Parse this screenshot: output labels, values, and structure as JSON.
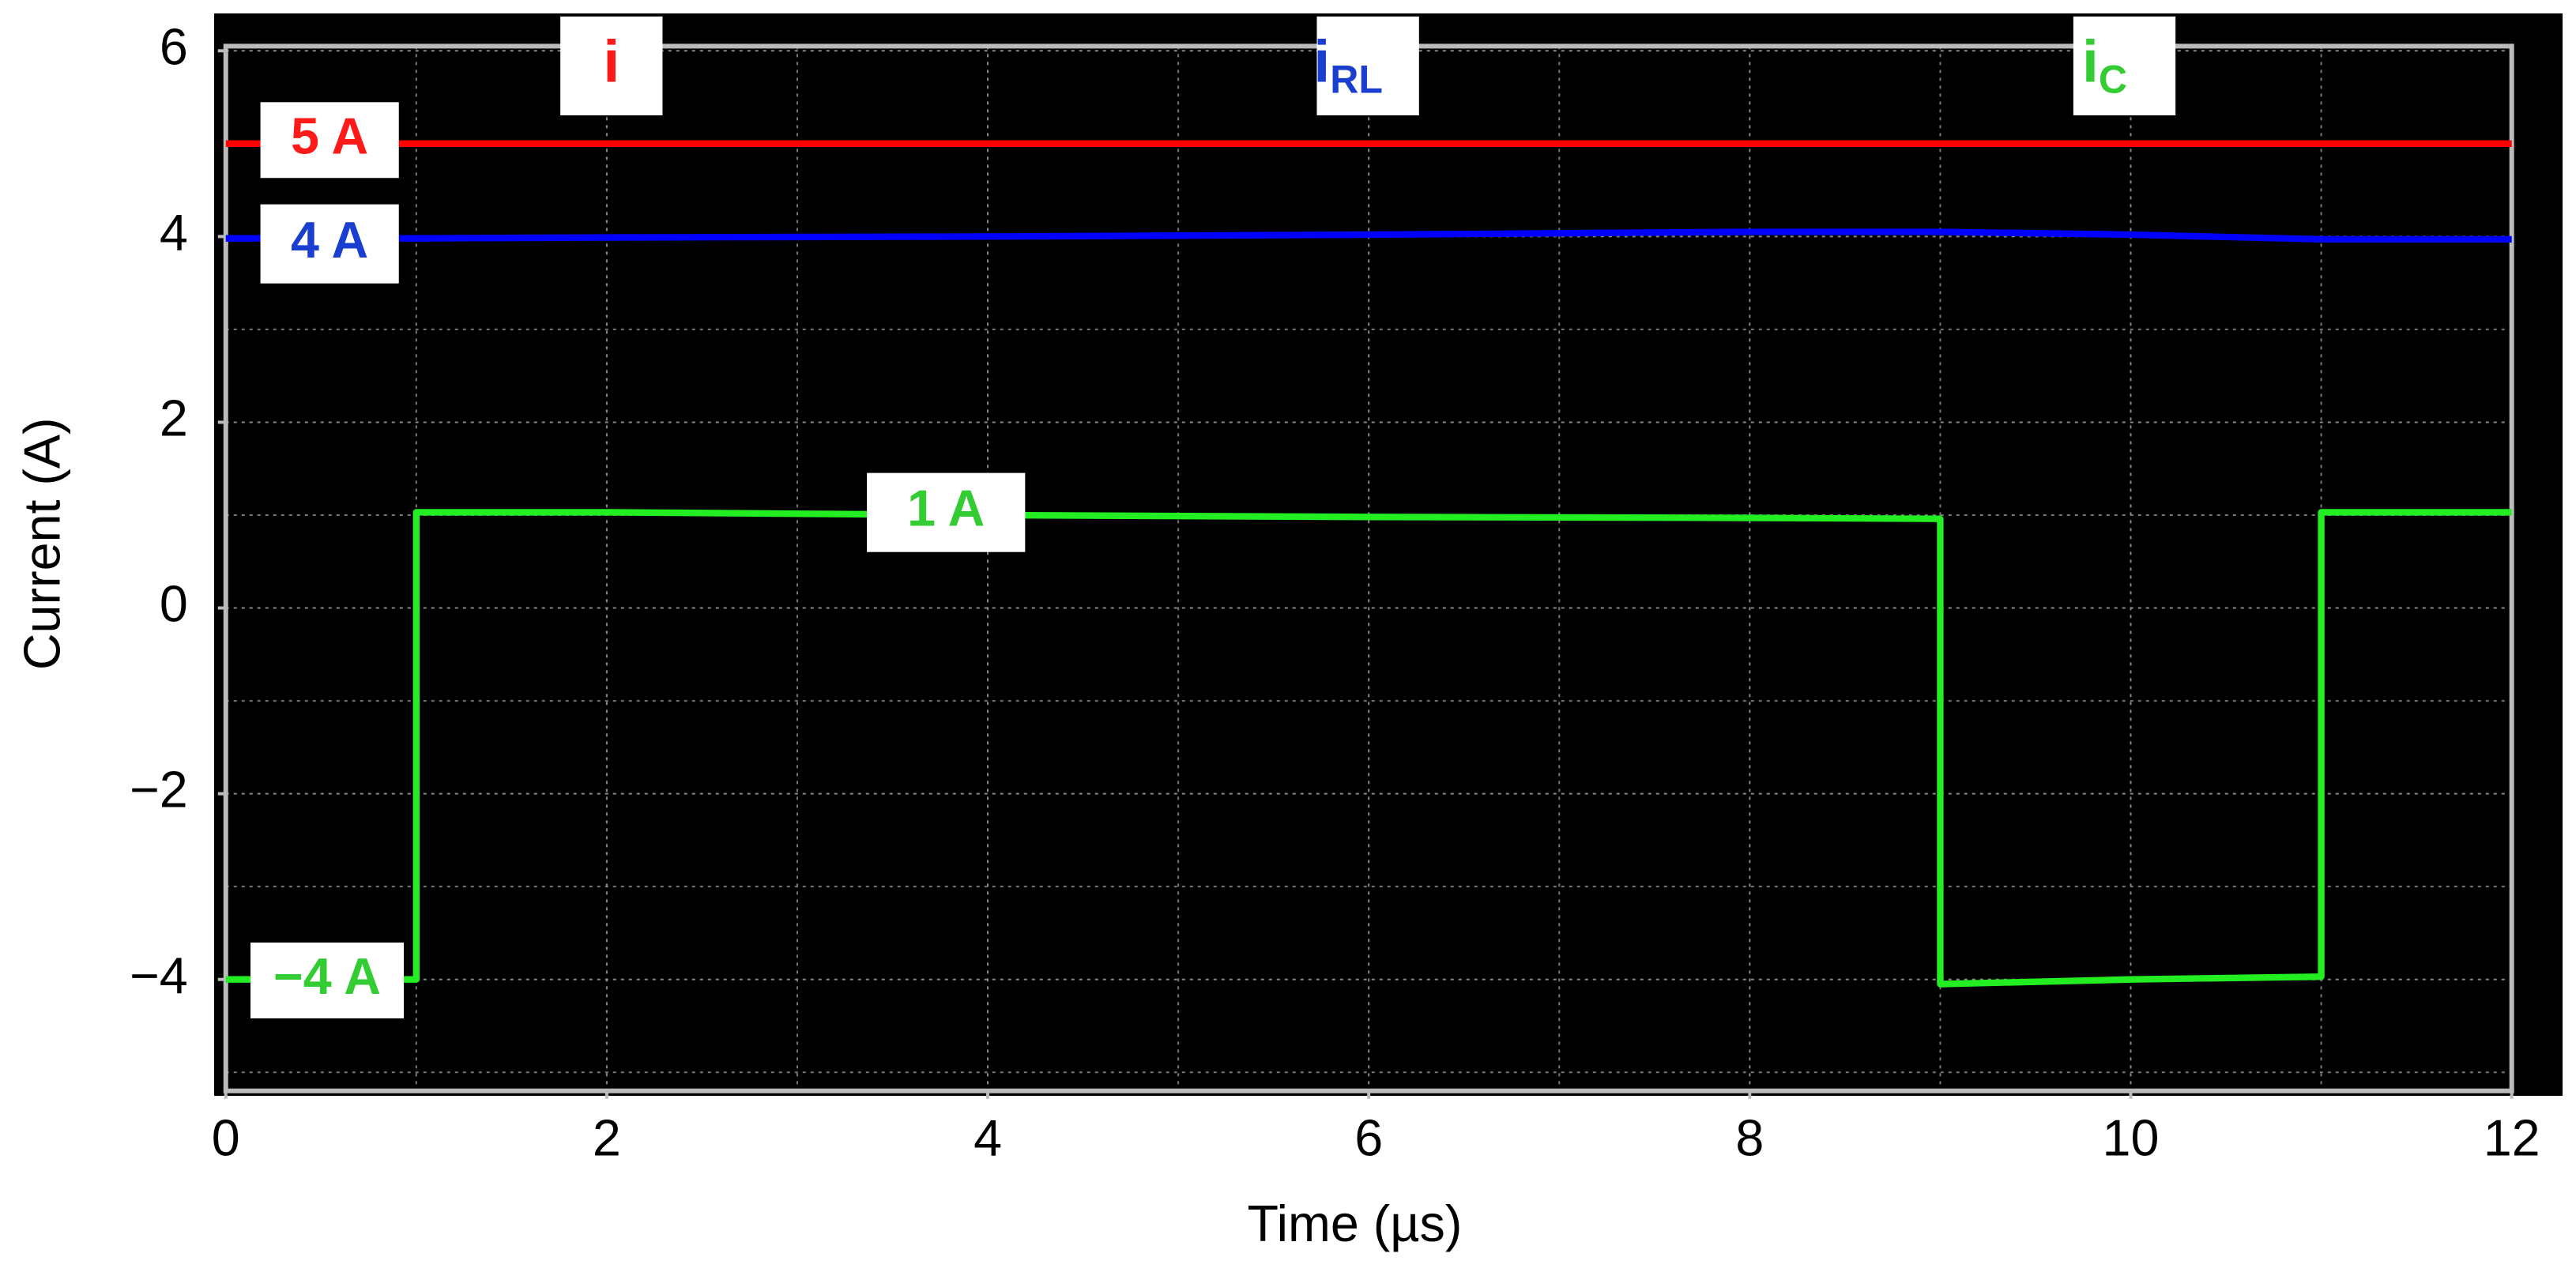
{
  "chart_data": {
    "type": "line",
    "xlabel": "Time (µs)",
    "ylabel": "Current (A)",
    "x": [
      0,
      1,
      1,
      2,
      4,
      6,
      8,
      9,
      9,
      10,
      11,
      11,
      12
    ],
    "series": [
      {
        "name": "i",
        "color": "#ff0000",
        "values": [
          5,
          5,
          5,
          5,
          5,
          5,
          5,
          5,
          5,
          5,
          5,
          5,
          5
        ]
      },
      {
        "name": "i",
        "subscript": "RL",
        "color": "#0000ff",
        "values": [
          3.98,
          3.98,
          3.98,
          3.99,
          4.0,
          4.02,
          4.05,
          4.05,
          4.05,
          4.02,
          3.97,
          3.97,
          3.97
        ]
      },
      {
        "name": "i",
        "subscript": "C",
        "color": "#22ee22",
        "values": [
          -4,
          -4,
          1.03,
          1.03,
          1.0,
          0.98,
          0.97,
          0.96,
          -4.05,
          -4.0,
          -3.97,
          1.03,
          1.03
        ]
      }
    ],
    "annotations": [
      "5 A",
      "4 A",
      "1 A",
      "−4 A"
    ],
    "xlim": [
      0,
      12
    ],
    "ylim": [
      -5.2,
      6.05
    ],
    "xticks": [
      0,
      2,
      4,
      6,
      8,
      10,
      12
    ],
    "yticks": [
      {
        "value": -4,
        "label": "−4"
      },
      {
        "value": -2,
        "label": "−2"
      },
      0,
      2,
      4,
      6
    ],
    "xminorticks": [
      1,
      3,
      5,
      7,
      9,
      11
    ],
    "yminorticks": [
      -5,
      -3,
      -1,
      1,
      3,
      5
    ],
    "grid": true
  }
}
